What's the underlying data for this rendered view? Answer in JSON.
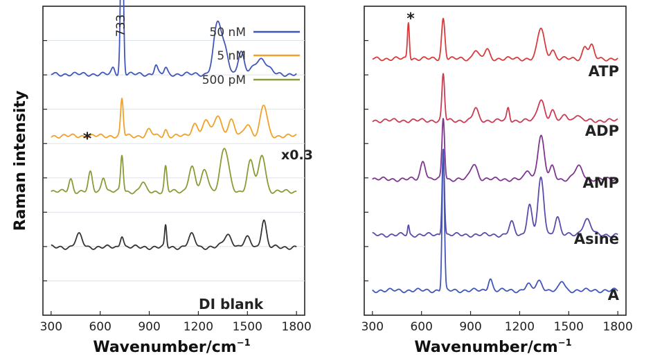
{
  "chart_data": [
    {
      "type": "line",
      "panel": "left",
      "title": "",
      "xlabel": "Wavenumber/cm",
      "xlabel_sup": "−1",
      "ylabel": "Raman intensity",
      "xlim": [
        250,
        1850
      ],
      "xticks": [
        "300",
        "600",
        "900",
        "1200",
        "1500",
        "1800"
      ],
      "tick_values": [
        300,
        600,
        900,
        1200,
        1500,
        1800
      ],
      "grid": true,
      "legend_position": "top-right",
      "annotations": {
        "peak_label": "733",
        "star": "*",
        "scale_label": "x0.3",
        "blank_label": "DI blank"
      },
      "series": [
        {
          "name": "50 nM",
          "color": "#3f56b8",
          "baseline": 0.22,
          "peaks": [
            [
              733,
              0.58,
              8
            ],
            [
              1320,
              0.17,
              25
            ],
            [
              1370,
              0.06,
              18
            ],
            [
              1460,
              0.07,
              18
            ],
            [
              1580,
              0.05,
              40
            ],
            [
              940,
              0.03,
              10
            ],
            [
              680,
              0.02,
              10
            ],
            [
              1000,
              0.02,
              10
            ]
          ]
        },
        {
          "name": "5 nM",
          "color": "#f0a128",
          "baseline": 0.42,
          "peaks": [
            [
              733,
              0.12,
              8
            ],
            [
              1600,
              0.1,
              20
            ],
            [
              1320,
              0.07,
              20
            ],
            [
              1250,
              0.05,
              20
            ],
            [
              1400,
              0.05,
              20
            ],
            [
              1180,
              0.04,
              20
            ],
            [
              1500,
              0.04,
              20
            ],
            [
              900,
              0.02,
              15
            ],
            [
              1000,
              0.02,
              10
            ]
          ]
        },
        {
          "name": "500 pM",
          "color": "#8a9a34",
          "baseline": 0.6,
          "peaks": [
            [
              733,
              0.12,
              8
            ],
            [
              1360,
              0.14,
              25
            ],
            [
              1590,
              0.12,
              20
            ],
            [
              1520,
              0.1,
              20
            ],
            [
              1160,
              0.08,
              20
            ],
            [
              1240,
              0.07,
              20
            ],
            [
              1000,
              0.08,
              8
            ],
            [
              540,
              0.06,
              12
            ],
            [
              620,
              0.05,
              12
            ],
            [
              420,
              0.04,
              12
            ],
            [
              860,
              0.03,
              15
            ]
          ]
        },
        {
          "name": "DI blank",
          "color": "#333333",
          "baseline": 0.78,
          "peaks": [
            [
              1600,
              0.09,
              15
            ],
            [
              1000,
              0.07,
              6
            ],
            [
              1160,
              0.04,
              20
            ],
            [
              1380,
              0.04,
              25
            ],
            [
              733,
              0.04,
              10
            ],
            [
              470,
              0.04,
              20
            ],
            [
              1500,
              0.03,
              20
            ]
          ]
        }
      ]
    },
    {
      "type": "line",
      "panel": "right",
      "title": "",
      "xlabel": "Wavenumber/cm",
      "xlabel_sup": "−1",
      "xlim": [
        250,
        1850
      ],
      "xticks": [
        "300",
        "600",
        "900",
        "1200",
        "1500",
        "1800"
      ],
      "tick_values": [
        300,
        600,
        900,
        1200,
        1500,
        1800
      ],
      "grid": false,
      "annotations": {
        "star": "*"
      },
      "series": [
        {
          "name": "ATP",
          "color": "#d83a3a",
          "baseline": 0.17,
          "peaks": [
            [
              520,
              0.12,
              6
            ],
            [
              733,
              0.13,
              10
            ],
            [
              1330,
              0.1,
              20
            ],
            [
              1600,
              0.04,
              15
            ],
            [
              1640,
              0.04,
              15
            ],
            [
              930,
              0.03,
              15
            ],
            [
              1000,
              0.03,
              15
            ],
            [
              1400,
              0.03,
              15
            ]
          ]
        },
        {
          "name": "ADP",
          "color": "#cc3a52",
          "baseline": 0.37,
          "peaks": [
            [
              733,
              0.15,
              8
            ],
            [
              1330,
              0.07,
              20
            ],
            [
              930,
              0.04,
              15
            ],
            [
              1130,
              0.04,
              8
            ],
            [
              1400,
              0.03,
              15
            ],
            [
              1480,
              0.02,
              15
            ],
            [
              1550,
              0.02,
              15
            ]
          ]
        },
        {
          "name": "AMP",
          "color": "#7f3590",
          "baseline": 0.56,
          "peaks": [
            [
              733,
              0.2,
              8
            ],
            [
              1330,
              0.14,
              20
            ],
            [
              610,
              0.06,
              15
            ],
            [
              920,
              0.05,
              20
            ],
            [
              1400,
              0.04,
              15
            ],
            [
              1560,
              0.04,
              25
            ],
            [
              1250,
              0.03,
              15
            ]
          ]
        },
        {
          "name": "Asine",
          "color": "#5a4aaa",
          "baseline": 0.74,
          "peaks": [
            [
              733,
              0.28,
              7
            ],
            [
              1330,
              0.18,
              18
            ],
            [
              1260,
              0.1,
              15
            ],
            [
              1430,
              0.06,
              15
            ],
            [
              1610,
              0.05,
              25
            ],
            [
              520,
              0.03,
              5
            ],
            [
              1150,
              0.04,
              15
            ]
          ]
        },
        {
          "name": "A",
          "color": "#3f56b8",
          "baseline": 0.92,
          "peaks": [
            [
              733,
              0.46,
              7
            ],
            [
              1020,
              0.04,
              12
            ],
            [
              1320,
              0.03,
              20
            ],
            [
              1460,
              0.03,
              15
            ],
            [
              1250,
              0.02,
              15
            ]
          ]
        }
      ]
    }
  ]
}
